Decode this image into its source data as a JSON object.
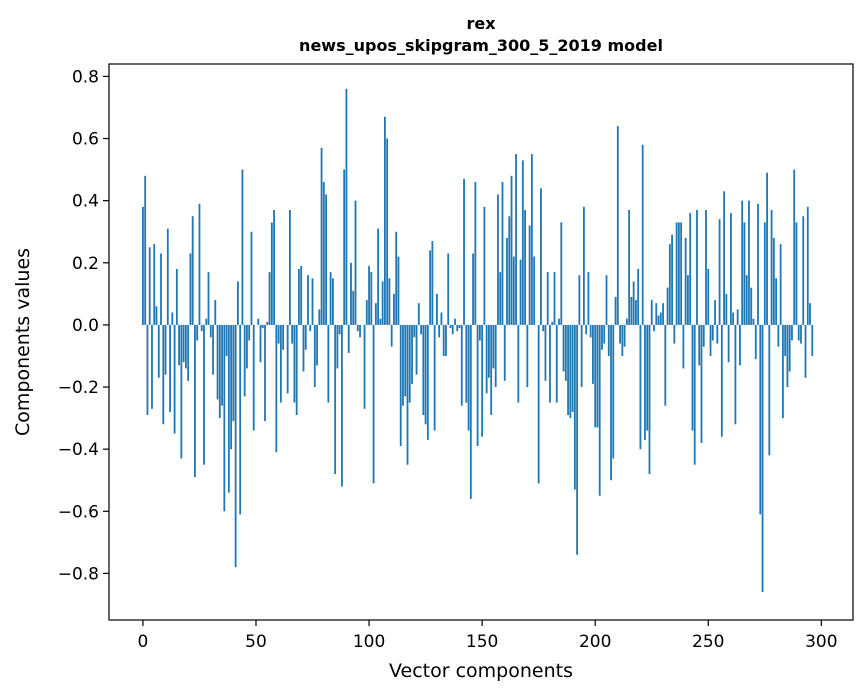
{
  "chart_data": {
    "type": "bar",
    "title_line1": "rex",
    "title_line2": "news_upos_skipgram_300_5_2019 model",
    "xlabel": "Vector components",
    "ylabel": "Components values",
    "xlim": [
      -15,
      314
    ],
    "ylim": [
      -0.95,
      0.84
    ],
    "xticks": [
      0,
      50,
      100,
      150,
      200,
      250,
      300
    ],
    "yticks": [
      -0.8,
      -0.6,
      -0.4,
      -0.2,
      0.0,
      0.2,
      0.4,
      0.6,
      0.8
    ],
    "ytick_labels": [
      "−0.8",
      "−0.6",
      "−0.4",
      "−0.2",
      "0.0",
      "0.2",
      "0.4",
      "0.6",
      "0.8"
    ],
    "bar_color": "#1f77b4",
    "values": [
      0.38,
      0.48,
      -0.29,
      0.25,
      -0.27,
      0.26,
      0.06,
      -0.17,
      0.23,
      -0.32,
      -0.16,
      0.31,
      -0.28,
      0.04,
      -0.35,
      0.18,
      -0.13,
      -0.43,
      -0.12,
      -0.14,
      -0.18,
      0.23,
      0.35,
      -0.49,
      -0.05,
      0.39,
      -0.02,
      -0.45,
      0.02,
      0.17,
      -0.04,
      -0.16,
      0.08,
      -0.24,
      -0.3,
      -0.26,
      -0.6,
      -0.1,
      -0.54,
      -0.4,
      -0.31,
      -0.78,
      0.14,
      -0.61,
      0.5,
      -0.23,
      -0.14,
      -0.05,
      0.3,
      -0.34,
      0.0,
      0.02,
      -0.12,
      -0.01,
      -0.31,
      0.01,
      0.17,
      0.33,
      0.37,
      -0.41,
      -0.06,
      -0.25,
      -0.08,
      0.0,
      -0.22,
      0.37,
      -0.06,
      -0.25,
      -0.29,
      0.18,
      0.19,
      -0.15,
      -0.08,
      0.16,
      -0.02,
      0.15,
      -0.2,
      -0.13,
      0.05,
      0.57,
      0.46,
      0.42,
      -0.25,
      0.17,
      0.15,
      -0.48,
      -0.14,
      -0.03,
      -0.52,
      0.5,
      0.76,
      -0.09,
      0.2,
      0.11,
      0.4,
      -0.02,
      -0.04,
      0.0,
      -0.27,
      0.08,
      0.19,
      0.17,
      -0.51,
      0.07,
      0.31,
      0.02,
      0.14,
      0.67,
      0.6,
      0.15,
      -0.07,
      0.1,
      0.3,
      0.22,
      -0.39,
      -0.26,
      -0.23,
      -0.45,
      -0.25,
      -0.19,
      -0.04,
      -0.16,
      0.07,
      -0.03,
      -0.29,
      -0.32,
      -0.37,
      0.24,
      0.27,
      -0.34,
      0.1,
      -0.04,
      0.04,
      -0.1,
      -0.1,
      0.23,
      -0.01,
      -0.03,
      0.02,
      -0.02,
      -0.01,
      -0.26,
      0.47,
      -0.25,
      -0.34,
      -0.56,
      0.23,
      0.46,
      -0.39,
      -0.05,
      -0.36,
      0.38,
      -0.22,
      -0.17,
      -0.29,
      -0.14,
      -0.2,
      0.42,
      0.17,
      0.46,
      -0.18,
      0.28,
      0.35,
      0.48,
      0.22,
      0.55,
      -0.25,
      0.21,
      0.53,
      0.37,
      -0.2,
      0.32,
      0.55,
      0.22,
      0.0,
      -0.51,
      0.44,
      -0.02,
      -0.18,
      0.17,
      -0.25,
      0.01,
      0.17,
      -0.25,
      0.02,
      0.33,
      -0.15,
      -0.18,
      -0.29,
      -0.3,
      -0.28,
      -0.53,
      -0.74,
      0.16,
      -0.2,
      0.38,
      -0.03,
      0.17,
      -0.04,
      -0.19,
      -0.33,
      -0.33,
      -0.55,
      -0.08,
      -0.06,
      0.16,
      -0.1,
      -0.5,
      -0.43,
      0.09,
      0.64,
      -0.06,
      -0.1,
      -0.07,
      0.02,
      0.37,
      0.09,
      0.14,
      0.08,
      0.18,
      -0.4,
      0.58,
      -0.37,
      -0.34,
      -0.48,
      0.08,
      -0.02,
      0.07,
      0.03,
      0.04,
      0.07,
      -0.26,
      0.12,
      0.26,
      0.29,
      -0.06,
      0.33,
      0.33,
      0.33,
      -0.14,
      0.28,
      0.16,
      0.36,
      -0.34,
      -0.45,
      0.37,
      -0.13,
      -0.38,
      -0.07,
      0.37,
      0.18,
      -0.1,
      -0.05,
      0.08,
      -0.06,
      0.34,
      -0.36,
      0.43,
      0.1,
      -0.12,
      0.36,
      0.04,
      -0.32,
      0.05,
      -0.13,
      0.4,
      0.33,
      0.16,
      0.4,
      0.12,
      0.02,
      -0.11,
      0.39,
      -0.61,
      -0.86,
      0.33,
      0.49,
      -0.42,
      0.37,
      0.28,
      0.15,
      -0.07,
      0.26,
      -0.3,
      -0.1,
      -0.2,
      -0.15,
      -0.05,
      0.5,
      0.33,
      -0.05,
      -0.06,
      0.35,
      -0.17,
      0.38,
      0.07,
      -0.1
    ]
  }
}
